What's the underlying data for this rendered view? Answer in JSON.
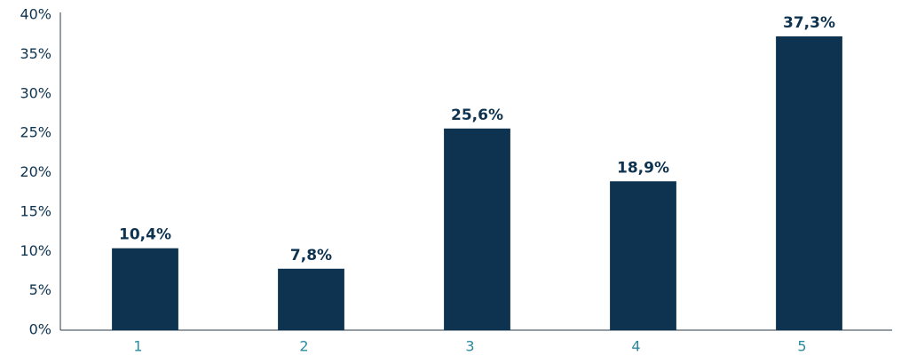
{
  "chart_data": {
    "type": "bar",
    "categories": [
      "1",
      "2",
      "3",
      "4",
      "5"
    ],
    "values": [
      10.4,
      7.8,
      25.6,
      18.9,
      37.3
    ],
    "value_labels": [
      "10,4%",
      "7,8%",
      "25,6%",
      "18,9%",
      "37,3%"
    ],
    "color": "#0e3350",
    "ylim": [
      0,
      40
    ],
    "yticks": [
      {
        "value": 0,
        "label": "0%"
      },
      {
        "value": 5,
        "label": "5%"
      },
      {
        "value": 10,
        "label": "10%"
      },
      {
        "value": 15,
        "label": "15%"
      },
      {
        "value": 20,
        "label": "20%"
      },
      {
        "value": 25,
        "label": "25%"
      },
      {
        "value": 30,
        "label": "30%"
      },
      {
        "value": 35,
        "label": "35%"
      },
      {
        "value": 40,
        "label": "40%"
      }
    ],
    "grid": false
  }
}
